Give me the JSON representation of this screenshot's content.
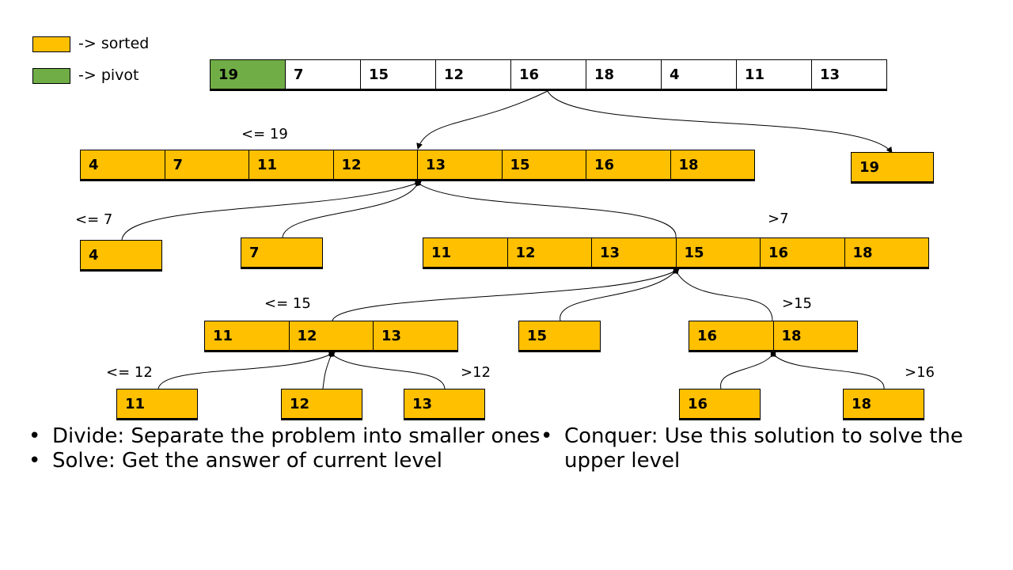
{
  "legend": [
    {
      "label": "-> sorted",
      "color": "#ffc000"
    },
    {
      "label": "-> pivot",
      "color": "#70ad47"
    }
  ],
  "colors": {
    "sorted": "#ffc000",
    "pivot": "#70ad47",
    "unsorted": "#ffffff"
  },
  "nodes": [
    {
      "id": "root",
      "status": "unsorted",
      "pivot_index": 0,
      "values": [
        19,
        7,
        15,
        12,
        16,
        18,
        4,
        11,
        13
      ]
    },
    {
      "id": "le19",
      "label": "<= 19",
      "status": "sorted",
      "values": [
        4,
        7,
        11,
        12,
        13,
        15,
        16,
        18
      ]
    },
    {
      "id": "eq19",
      "label": "",
      "status": "sorted",
      "values": [
        19
      ]
    },
    {
      "id": "le7",
      "label": "<= 7",
      "status": "sorted",
      "values": [
        4
      ]
    },
    {
      "id": "eq7",
      "label": "",
      "status": "sorted",
      "values": [
        7
      ]
    },
    {
      "id": "gt7",
      "label": ">7",
      "status": "sorted",
      "values": [
        11,
        12,
        13,
        15,
        16,
        18
      ]
    },
    {
      "id": "le15",
      "label": "<= 15",
      "status": "sorted",
      "values": [
        11,
        12,
        13
      ]
    },
    {
      "id": "eq15",
      "label": "",
      "status": "sorted",
      "values": [
        15
      ]
    },
    {
      "id": "gt15",
      "label": ">15",
      "status": "sorted",
      "values": [
        16,
        18
      ]
    },
    {
      "id": "le12",
      "label": "<= 12",
      "status": "sorted",
      "values": [
        11
      ]
    },
    {
      "id": "eq12",
      "label": "",
      "status": "sorted",
      "values": [
        12
      ]
    },
    {
      "id": "gt12",
      "label": ">12",
      "status": "sorted",
      "values": [
        13
      ]
    },
    {
      "id": "eq16",
      "label": "",
      "status": "sorted",
      "values": [
        16
      ]
    },
    {
      "id": "gt16",
      "label": ">16",
      "status": "sorted",
      "values": [
        18
      ]
    }
  ],
  "edges": [
    {
      "from": "root",
      "to": "le19"
    },
    {
      "from": "root",
      "to": "eq19"
    },
    {
      "from": "le19",
      "to": "le7"
    },
    {
      "from": "le19",
      "to": "eq7"
    },
    {
      "from": "le19",
      "to": "gt7"
    },
    {
      "from": "gt7",
      "to": "le15"
    },
    {
      "from": "gt7",
      "to": "eq15"
    },
    {
      "from": "gt7",
      "to": "gt15"
    },
    {
      "from": "le15",
      "to": "le12"
    },
    {
      "from": "le15",
      "to": "eq12"
    },
    {
      "from": "le15",
      "to": "gt12"
    },
    {
      "from": "gt15",
      "to": "eq16"
    },
    {
      "from": "gt15",
      "to": "gt16"
    }
  ],
  "bullets": {
    "left": [
      "Divide: Separate the problem into smaller ones",
      "Solve: Get the answer of current level"
    ],
    "right": [
      "Conquer: Use this solution to solve the upper level"
    ]
  }
}
